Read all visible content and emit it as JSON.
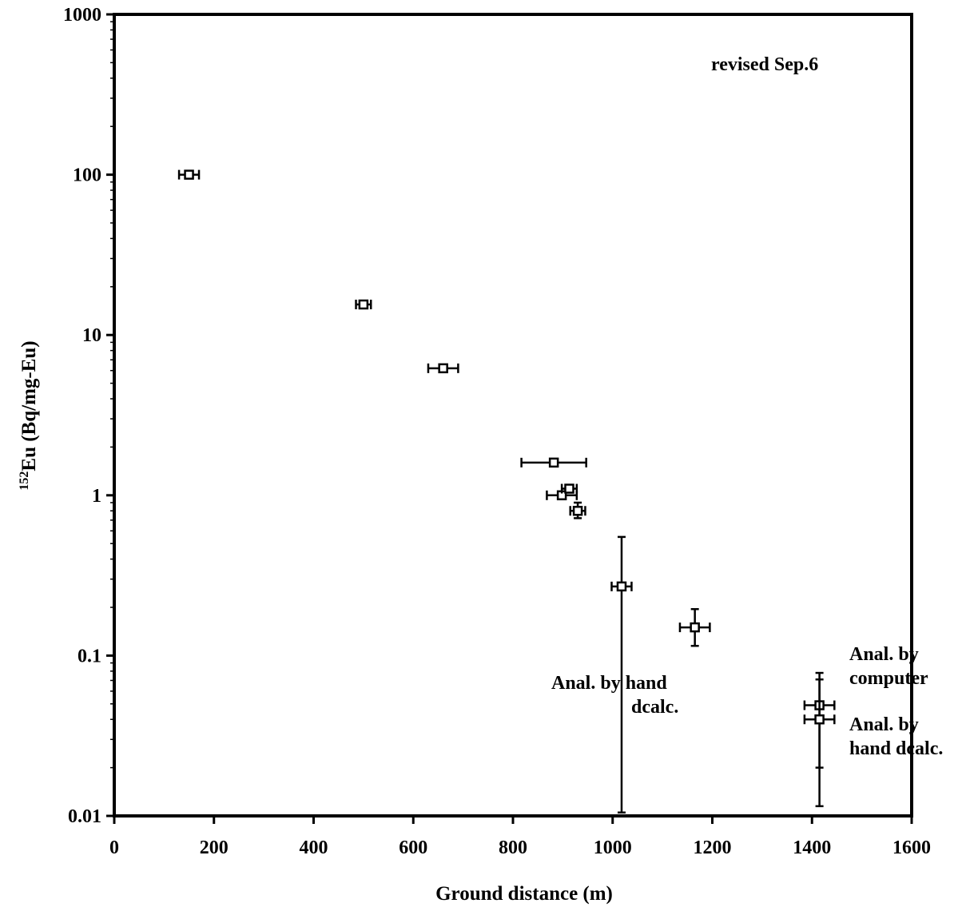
{
  "chart_data": {
    "type": "scatter",
    "xlabel": "Ground distance (m)",
    "ylabel_sup": "152",
    "ylabel_rest": "Eu (Bq/mg-Eu)",
    "xlim": [
      0,
      1600
    ],
    "ylim": [
      0.01,
      1000
    ],
    "yscale": "log",
    "grid": false,
    "x_ticks": [
      "0",
      "200",
      "400",
      "600",
      "800",
      "1000",
      "1200",
      "1400",
      "1600"
    ],
    "y_ticks": [
      "1000",
      "100",
      "10",
      "1",
      "0.1",
      "0.01"
    ],
    "points": [
      {
        "x": 150,
        "y": 100,
        "xerr": 20,
        "yerr_low": null,
        "yerr_high": null
      },
      {
        "x": 500,
        "y": 15.5,
        "xerr": 15,
        "yerr_low": null,
        "yerr_high": null
      },
      {
        "x": 660,
        "y": 6.2,
        "xerr": 30,
        "yerr_low": null,
        "yerr_high": null
      },
      {
        "x": 882,
        "y": 1.6,
        "xerr": 65,
        "yerr_low": null,
        "yerr_high": null
      },
      {
        "x": 898,
        "y": 1.0,
        "xerr": 30,
        "yerr_low": null,
        "yerr_high": null
      },
      {
        "x": 913,
        "y": 1.1,
        "xerr": 15,
        "yerr_low": null,
        "yerr_high": null
      },
      {
        "x": 930,
        "y": 0.8,
        "xerr": 15,
        "yerr_low": 0.72,
        "yerr_high": 0.9
      },
      {
        "x": 1018,
        "y": 0.27,
        "xerr": 20,
        "yerr_low": 0.0105,
        "yerr_high": 0.55
      },
      {
        "x": 1165,
        "y": 0.15,
        "xerr": 30,
        "yerr_low": 0.115,
        "yerr_high": 0.195
      },
      {
        "x": 1415,
        "y": 0.049,
        "xerr": 30,
        "yerr_low": 0.02,
        "yerr_high": 0.078
      },
      {
        "x": 1415,
        "y": 0.04,
        "xerr": 30,
        "yerr_low": 0.0115,
        "yerr_high": 0.071
      }
    ]
  },
  "annotations": {
    "revised": "revised Sep.6",
    "hand_left_1": "Anal. by hand",
    "hand_left_2": "dcalc.",
    "computer_1": "Anal. by",
    "computer_2": "computer",
    "hand_right_1": "Anal. by",
    "hand_right_2": "hand dcalc."
  }
}
